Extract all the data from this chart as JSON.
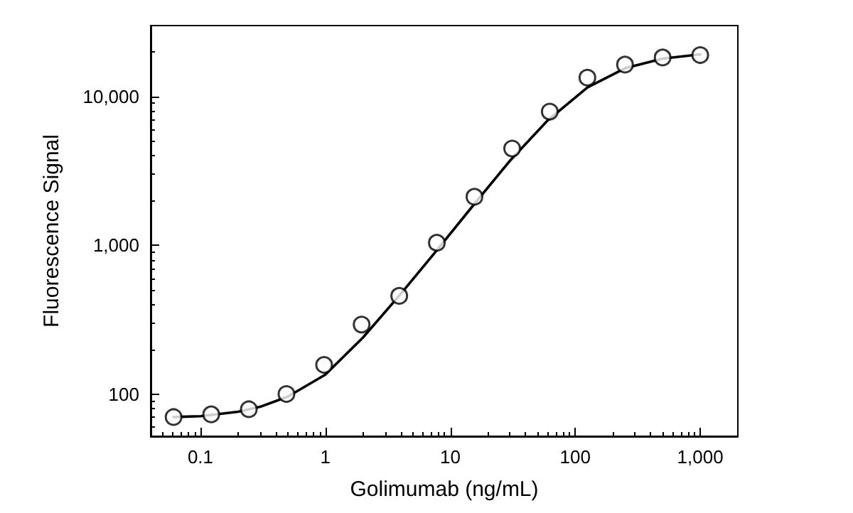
{
  "chart_data": {
    "type": "scatter",
    "xlabel": "Golimumab (ng/mL)",
    "ylabel": "Fluorescence Signal",
    "log": "xy",
    "grid": false,
    "marker": "circle",
    "xlim": [
      0.04,
      2000
    ],
    "xticks": [
      0.1,
      1,
      10,
      100,
      {
        "value": 1000,
        "label": "1,000"
      }
    ],
    "ylim": [
      52,
      30000
    ],
    "yticks": [
      100,
      {
        "value": 1000,
        "label": "1,000"
      },
      {
        "value": 10000,
        "label": "10,000"
      }
    ],
    "series": [
      {
        "color": "#000000",
        "x": [
          0.061,
          0.122,
          0.244,
          0.488,
          0.977,
          1.95,
          3.9,
          7.8,
          15.6,
          31.25,
          62.5,
          125,
          250,
          500,
          1000
        ],
        "values": [
          70,
          73,
          79,
          100,
          157,
          293,
          457,
          1040,
          2120,
          4470,
          7920,
          13400,
          16400,
          18300,
          19000
        ]
      },
      {
        "type": "line",
        "color": "#000000",
        "marker": "none",
        "line_style": "solid",
        "x": [
          0.061,
          0.1,
          0.2,
          0.3,
          0.5,
          1,
          2,
          4,
          8,
          16,
          30,
          60,
          125,
          250,
          500,
          1000
        ],
        "values": [
          70,
          71,
          76,
          82,
          96,
          135,
          240,
          470,
          950,
          1950,
          3700,
          6900,
          11500,
          15500,
          18000,
          19200
        ]
      }
    ]
  }
}
